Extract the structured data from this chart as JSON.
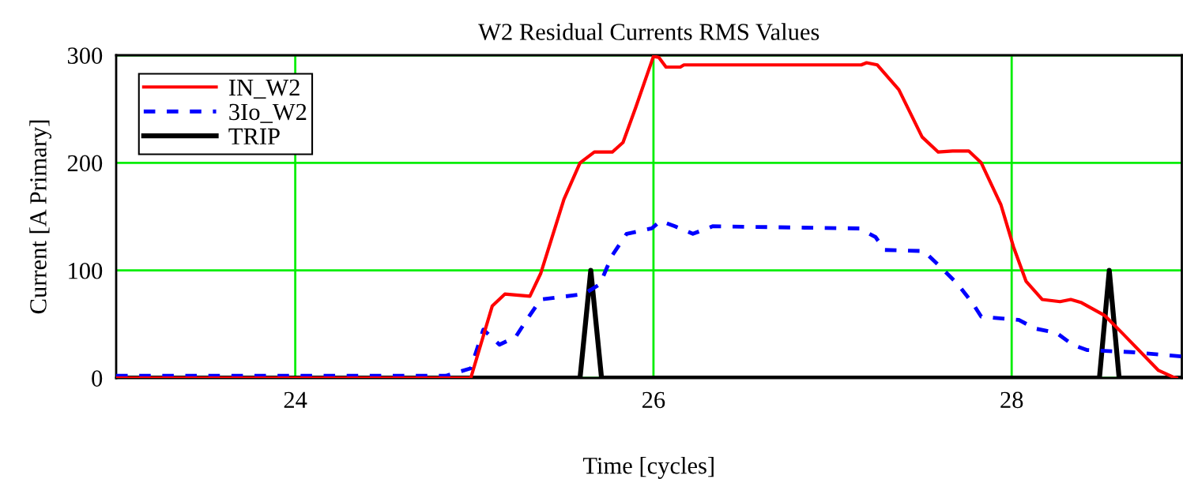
{
  "chart_data": {
    "type": "line",
    "title": "W2 Residual Currents RMS Values",
    "xlabel": "Time [cycles]",
    "ylabel": "Current [A Primary]",
    "xlim": [
      23,
      28.95
    ],
    "ylim": [
      0,
      300
    ],
    "xticks": [
      24,
      26,
      28
    ],
    "yticks": [
      0,
      100,
      200,
      300
    ],
    "grid": true,
    "legend": "top left",
    "series": [
      {
        "name": "IN_W2",
        "color": "#ff0000",
        "line_style": "solid",
        "x": [
          23,
          24.98,
          25.1,
          25.17,
          25.31,
          25.37,
          25.5,
          25.59,
          25.67,
          25.77,
          25.83,
          25.9,
          26.0,
          26.03,
          26.07,
          26.15,
          26.17,
          27.16,
          27.19,
          27.25,
          27.37,
          27.5,
          27.59,
          27.67,
          27.76,
          27.83,
          27.94,
          28.01,
          28.08,
          28.17,
          28.27,
          28.33,
          28.39,
          28.52,
          28.61,
          28.82,
          28.9,
          28.92
        ],
        "values": [
          0,
          0,
          67,
          78,
          76,
          97,
          166,
          200,
          210,
          210,
          219,
          251,
          299,
          298,
          289,
          289,
          291,
          291,
          293,
          291,
          268,
          224,
          210,
          211,
          211,
          200,
          161,
          122,
          90,
          73,
          71,
          73,
          70,
          58,
          43,
          7,
          1,
          0
        ]
      },
      {
        "name": "3Io_W2",
        "color": "#0000ff",
        "line_style": "dashed",
        "x": [
          23,
          24.84,
          24.98,
          25.05,
          25.14,
          25.23,
          25.3,
          25.37,
          25.61,
          25.7,
          25.77,
          25.85,
          25.99,
          26.04,
          26.12,
          26.22,
          26.33,
          27.15,
          27.24,
          27.29,
          27.51,
          27.61,
          27.7,
          27.78,
          27.83,
          28.04,
          28.13,
          28.25,
          28.34,
          28.42,
          28.67,
          28.95
        ],
        "values": [
          2,
          2,
          9,
          45,
          31,
          38,
          56,
          73,
          78,
          87,
          114,
          134,
          139,
          146,
          141,
          134,
          141,
          139,
          131,
          119,
          118,
          102,
          87,
          70,
          57,
          54,
          46,
          42,
          31,
          26,
          24,
          20
        ]
      },
      {
        "name": "TRIP",
        "color": "#000000",
        "line_style": "solid",
        "x": [
          23,
          25.59,
          25.65,
          25.71,
          28.49,
          28.545,
          28.6,
          28.95
        ],
        "values": [
          0,
          0,
          100,
          0,
          0,
          100,
          0,
          0
        ]
      }
    ]
  }
}
